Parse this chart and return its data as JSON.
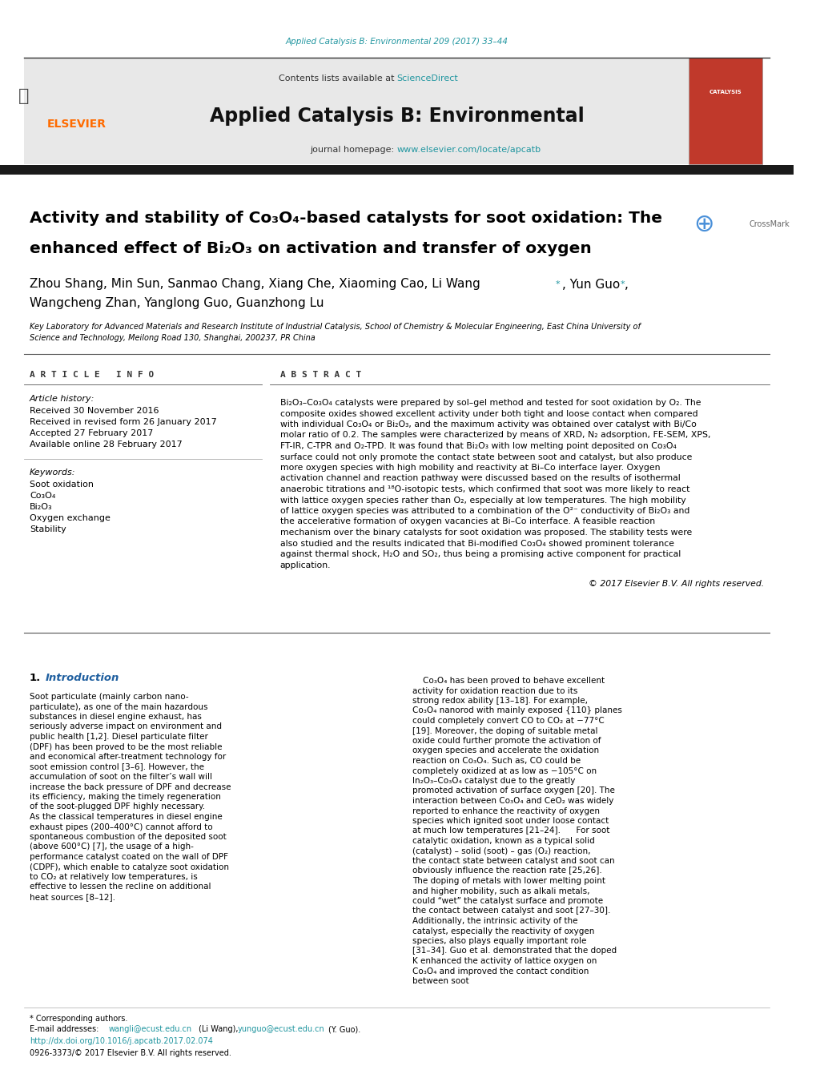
{
  "page_width": 10.2,
  "page_height": 13.51,
  "bg_color": "#ffffff",
  "top_citation": "Applied Catalysis B: Environmental 209 (2017) 33–44",
  "top_citation_color": "#2196a0",
  "journal_name": "Applied Catalysis B: Environmental",
  "journal_homepage": "journal homepage: www.elsevier.com/locate/apcatb",
  "homepage_url_color": "#2196a0",
  "contents_text": "Contents lists available at ScienceDirect",
  "sciencedirect_color": "#2196a0",
  "header_bg": "#e8e8e8",
  "elsevier_color": "#ff6b00",
  "separator_color": "#333333",
  "article_title_line1": "Activity and stability of Co₃O₄-based catalysts for soot oxidation: The",
  "article_title_line2": "enhanced effect of Bi₂O₃ on activation and transfer of oxygen",
  "title_color": "#000000",
  "authors": "Zhou Shang, Min Sun, Sanmao Chang, Xiang Che, Xiaoming Cao, Li Wang⁺, Yun Guo⁺,\nWangcheng Zhan, Yanglong Guo, Guanzhong Lu",
  "affiliation": "Key Laboratory for Advanced Materials and Research Institute of Industrial Catalysis, School of Chemistry & Molecular Engineering, East China University of\nScience and Technology, Meilong Road 130, Shanghai, 200237, PR China",
  "article_info_header": "A R T I C L E   I N F O",
  "abstract_header": "A B S T R A C T",
  "article_history_label": "Article history:",
  "received_date": "Received 30 November 2016",
  "revised_date": "Received in revised form 26 January 2017",
  "accepted_date": "Accepted 27 February 2017",
  "available_date": "Available online 28 February 2017",
  "keywords_label": "Keywords:",
  "keywords": [
    "Soot oxidation",
    "Co₃O₄",
    "Bi₂O₃",
    "Oxygen exchange",
    "Stability"
  ],
  "abstract_text": "Bi₂O₃–Co₃O₄ catalysts were prepared by sol–gel method and tested for soot oxidation by O₂. The composite oxides showed excellent activity under both tight and loose contact when compared with individual Co₃O₄ or Bi₂O₃, and the maximum activity was obtained over catalyst with Bi/Co molar ratio of 0.2. The samples were characterized by means of XRD, N₂ adsorption, FE-SEM, XPS, FT-IR, C-TPR and O₂-TPD. It was found that Bi₂O₃ with low melting point deposited on Co₃O₄ surface could not only promote the contact state between soot and catalyst, but also produce more oxygen species with high mobility and reactivity at Bi–Co interface layer. Oxygen activation channel and reaction pathway were discussed based on the results of isothermal anaerobic titrations and ¹⁸O-isotopic tests, which confirmed that soot was more likely to react with lattice oxygen species rather than O₂, especially at low temperatures. The high mobility of lattice oxygen species was attributed to a combination of the O²⁻ conductivity of Bi₂O₃ and the accelerative formation of oxygen vacancies at Bi–Co interface. A feasible reaction mechanism over the binary catalysts for soot oxidation was proposed. The stability tests were also studied and the results indicated that Bi-modified Co₃O₄ showed prominent tolerance against thermal shock, H₂O and SO₂, thus being a promising active component for practical application.",
  "copyright": "© 2017 Elsevier B.V. All rights reserved.",
  "intro_number": "1.",
  "intro_title": "Introduction",
  "intro_col1_text": "Soot particulate (mainly carbon nano-particulate), as one of the main hazardous substances in diesel engine exhaust, has seriously adverse impact on environment and public health [1,2]. Diesel particulate filter (DPF) has been proved to be the most reliable and economical after-treatment technology for soot emission control [3–6]. However, the accumulation of soot on the filter’s wall will increase the back pressure of DPF and decrease its efficiency, making the timely regeneration of the soot-plugged DPF highly necessary.\n\n    As the classical temperatures in diesel engine exhaust pipes (200–400°C) cannot afford to spontaneous combustion of the deposited soot (above 600°C) [7], the usage of a high-performance catalyst coated on the wall of DPF (CDPF), which enable to catalyze soot oxidation to CO₂ at relatively low temperatures, is effective to lessen the recline on additional heat sources [8–12].",
  "intro_col2_text": "    Co₃O₄ has been proved to behave excellent activity for oxidation reaction due to its strong redox ability [13–18]. For example, Co₃O₄ nanorod with mainly exposed {110} planes could completely convert CO to CO₂ at −77°C [19]. Moreover, the doping of suitable metal oxide could further promote the activation of oxygen species and accelerate the oxidation reaction on Co₃O₄. Such as, CO could be completely oxidized at as low as −105°C on In₂O₃–Co₃O₄ catalyst due to the greatly promoted activation of surface oxygen [20]. The interaction between Co₃O₄ and CeO₂ was widely reported to enhance the reactivity of oxygen species which ignited soot under loose contact at much low temperatures [21–24].\n\n    For soot catalytic oxidation, known as a typical solid (catalyst) – solid (soot) – gas (O₂) reaction, the contact state between catalyst and soot can obviously influence the reaction rate [25,26]. The doping of metals with lower melting point and higher mobility, such as alkali metals, could “wet” the catalyst surface and promote the contact between catalyst and soot [27–30]. Additionally, the intrinsic activity of the catalyst, especially the reactivity of oxygen species, also plays equally important role [31–34]. Guo et al. demonstrated that the doped K enhanced the activity of lattice oxygen on Co₃O₄ and improved the contact condition between soot",
  "footnote_corresponding": "* Corresponding authors.",
  "footnote_email1": "E-mail addresses: wangli@ecust.edu.cn (Li Wang), yunguo@ecust.edu.cn (Y. Guo).",
  "footnote_doi": "http://dx.doi.org/10.1016/j.apcatb.2017.02.074",
  "footnote_issn": "0926-3373/© 2017 Elsevier B.V. All rights reserved."
}
